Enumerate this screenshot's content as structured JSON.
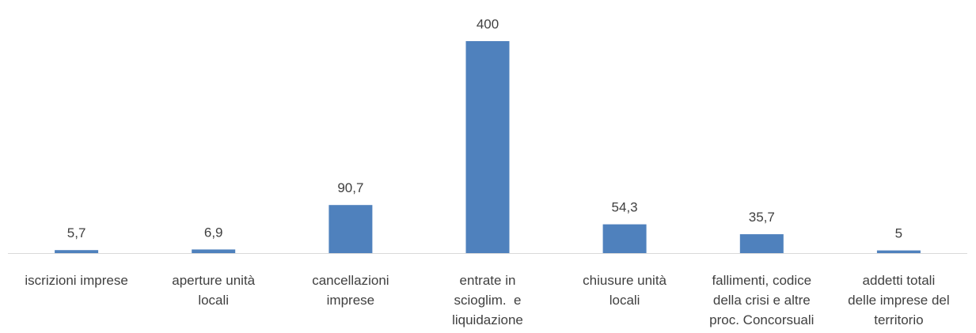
{
  "chart_data": {
    "type": "bar",
    "title": "",
    "xlabel": "",
    "ylabel": "",
    "ylim": [
      0,
      400
    ],
    "grid": false,
    "legend": "none",
    "bar_color": "#4f81bd",
    "categories": [
      [
        "iscrizioni imprese"
      ],
      [
        "aperture unità",
        "locali"
      ],
      [
        "cancellazioni",
        "imprese"
      ],
      [
        "entrate in",
        "scioglim.  e",
        "liquidazione"
      ],
      [
        "chiusure unità",
        "locali"
      ],
      [
        "fallimenti, codice",
        "della crisi e altre",
        "proc. Concorsuali"
      ],
      [
        "addetti totali",
        "delle imprese del",
        "territorio"
      ]
    ],
    "values": [
      5.7,
      6.9,
      90.7,
      400,
      54.3,
      35.7,
      5
    ],
    "value_labels": [
      "5,7",
      "6,9",
      "90,7",
      "400",
      "54,3",
      "35,7",
      "5"
    ]
  }
}
